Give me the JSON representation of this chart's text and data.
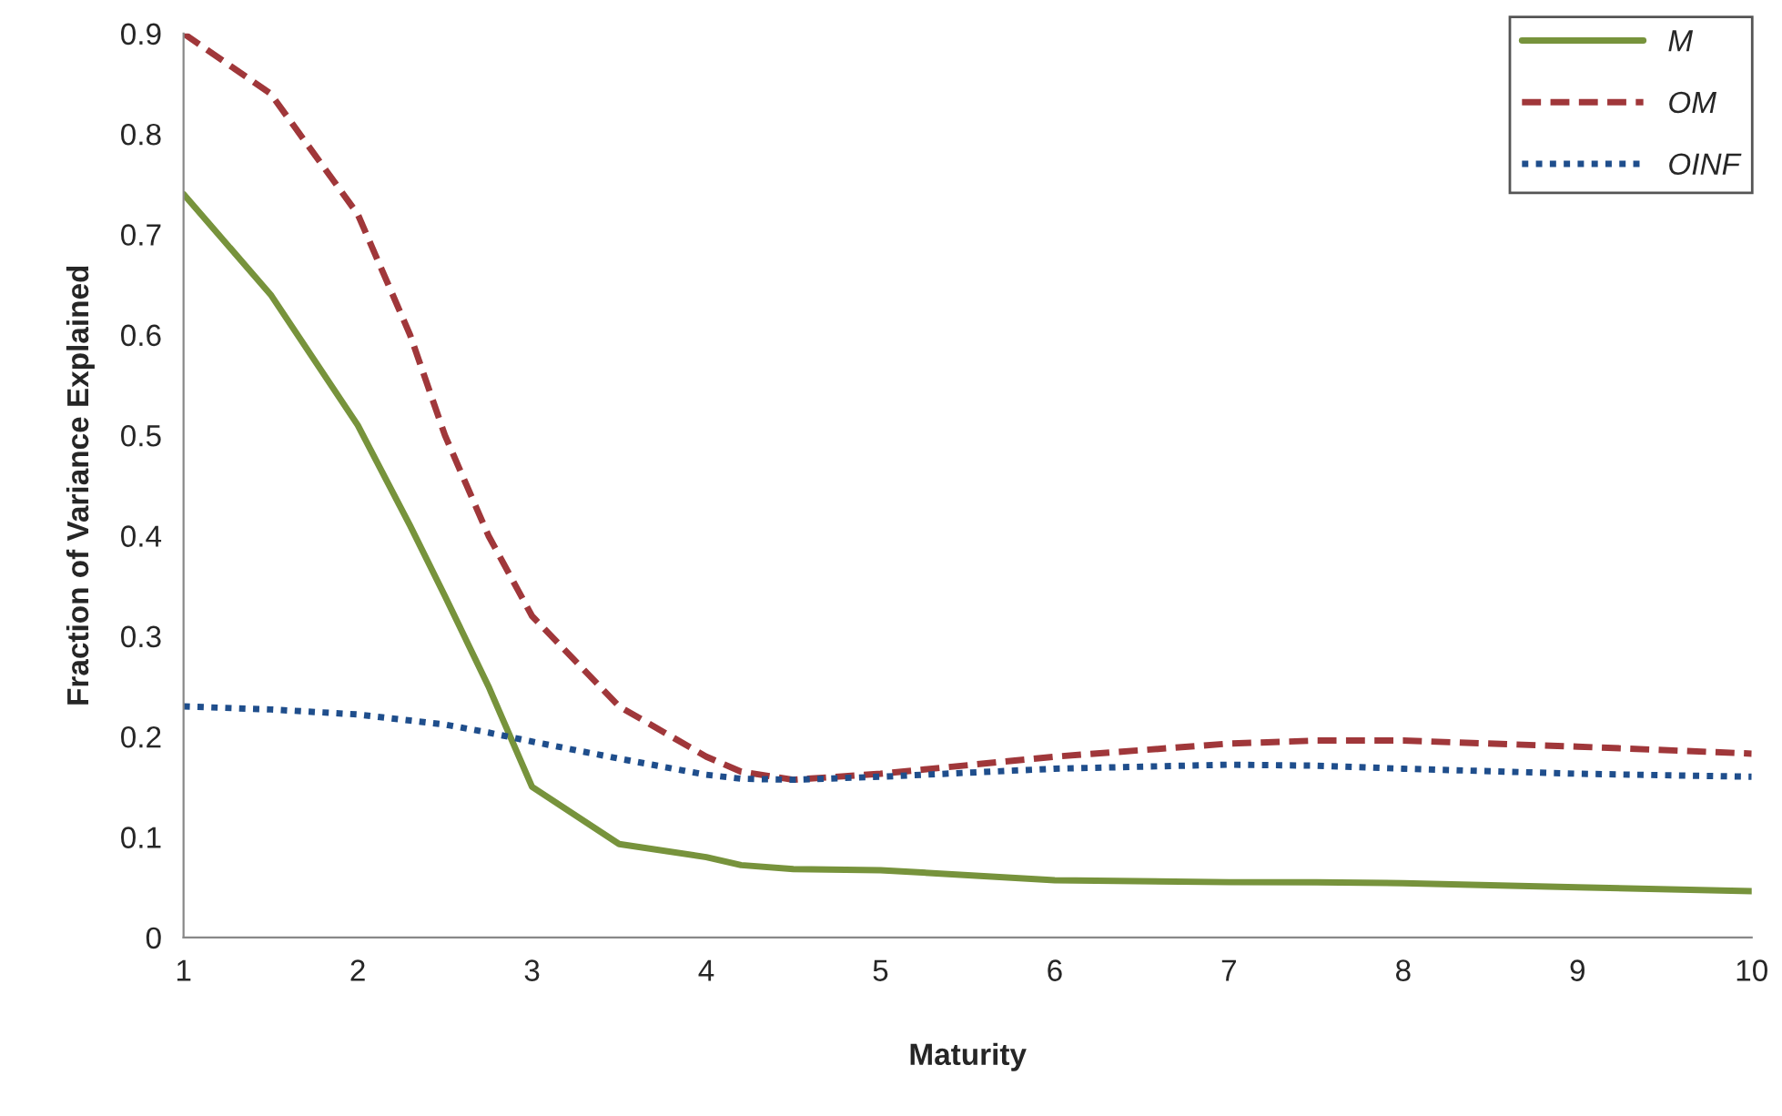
{
  "chart_data": {
    "type": "line",
    "xlabel": "Maturity",
    "ylabel": "Fraction of Variance Explained",
    "xlim": [
      1,
      10
    ],
    "xticks": [
      1,
      2,
      3,
      4,
      5,
      6,
      7,
      8,
      9,
      10
    ],
    "ylim": [
      0,
      0.9
    ],
    "yticks": [
      0,
      0.1,
      0.2,
      0.3,
      0.4,
      0.5,
      0.6,
      0.7,
      0.8,
      0.9
    ],
    "grid": false,
    "legend": "top right",
    "x": [
      1,
      1.5,
      2,
      2.3,
      2.5,
      2.75,
      3,
      3.5,
      4,
      4.2,
      4.5,
      5,
      6,
      7,
      7.5,
      8,
      9,
      10
    ],
    "series": [
      {
        "name": "M",
        "color": "#77933c",
        "line_style": "solid",
        "values": [
          0.74,
          0.64,
          0.51,
          0.41,
          0.34,
          0.25,
          0.15,
          0.093,
          0.08,
          0.072,
          0.068,
          0.067,
          0.057,
          0.055,
          0.055,
          0.054,
          0.05,
          0.046
        ]
      },
      {
        "name": "OM",
        "color": "#a0373a",
        "line_style": "dashed",
        "values": [
          0.9,
          0.84,
          0.72,
          0.6,
          0.5,
          0.4,
          0.32,
          0.23,
          0.18,
          0.165,
          0.157,
          0.163,
          0.18,
          0.193,
          0.196,
          0.196,
          0.19,
          0.183
        ]
      },
      {
        "name": "OINF",
        "color": "#1f4e8c",
        "line_style": "dotted",
        "values": [
          0.23,
          0.227,
          0.222,
          0.216,
          0.212,
          0.204,
          0.195,
          0.178,
          0.162,
          0.158,
          0.157,
          0.16,
          0.168,
          0.172,
          0.171,
          0.168,
          0.163,
          0.16
        ]
      }
    ]
  }
}
